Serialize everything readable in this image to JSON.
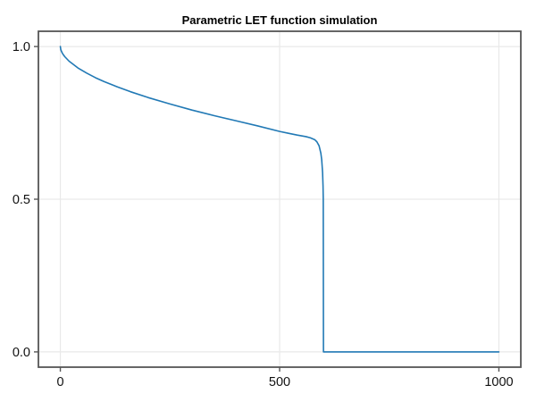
{
  "chart_data": {
    "type": "line",
    "title": "Parametric LET function simulation",
    "xlabel": "",
    "ylabel": "",
    "xlim": [
      -50,
      1050
    ],
    "ylim": [
      -0.05,
      1.05
    ],
    "grid": true,
    "legend": "none",
    "line_color": "#2179b5",
    "spine_color": "#565656",
    "grid_color": "#e9e9e9",
    "xticks": [
      0,
      500,
      1000
    ],
    "xtick_labels": [
      "0",
      "500",
      "1000"
    ],
    "yticks": [
      0,
      0.5,
      1
    ],
    "ytick_labels": [
      "0.0",
      "0.5",
      "1.0"
    ],
    "series": [
      {
        "name": "LET",
        "x": [
          0,
          1,
          2,
          5,
          10,
          20,
          40,
          60,
          80,
          100,
          130,
          160,
          200,
          250,
          300,
          350,
          400,
          450,
          500,
          520,
          540,
          560,
          570,
          580,
          585,
          590,
          594,
          596,
          598,
          599,
          599.5,
          600,
          650,
          700,
          800,
          900,
          1000
        ],
        "y": [
          1.0,
          0.99,
          0.986,
          0.977,
          0.967,
          0.952,
          0.93,
          0.913,
          0.898,
          0.885,
          0.868,
          0.852,
          0.833,
          0.812,
          0.792,
          0.774,
          0.757,
          0.74,
          0.722,
          0.716,
          0.71,
          0.705,
          0.701,
          0.695,
          0.688,
          0.675,
          0.651,
          0.629,
          0.587,
          0.544,
          0.502,
          0.0,
          0.0,
          0.0,
          0.0,
          0.0,
          0.0
        ]
      }
    ]
  }
}
